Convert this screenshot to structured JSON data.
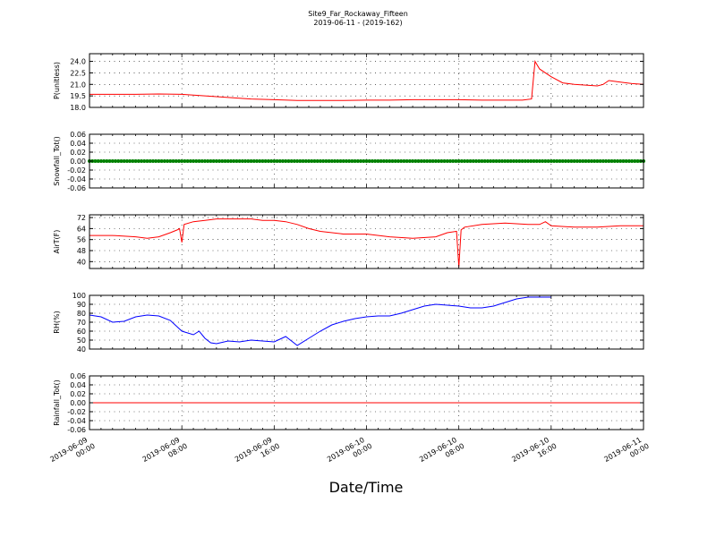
{
  "figure": {
    "title": "Site9_Far_Rockaway_Fifteen",
    "subtitle": "2019-06-11 - (2019-162)",
    "xlabel": "Date/Time"
  },
  "colors": {
    "red": "#ff0000",
    "green": "#008000",
    "blue": "#0000ff",
    "axis": "#000000"
  },
  "x_ticks": [
    {
      "time": 0,
      "line1": "2019-06-09",
      "line2": "00:00"
    },
    {
      "time": 8,
      "line1": "2019-06-09",
      "line2": "08:00"
    },
    {
      "time": 16,
      "line1": "2019-06-09",
      "line2": "16:00"
    },
    {
      "time": 24,
      "line1": "2019-06-10",
      "line2": "00:00"
    },
    {
      "time": 32,
      "line1": "2019-06-10",
      "line2": "08:00"
    },
    {
      "time": 40,
      "line1": "2019-06-10",
      "line2": "16:00"
    },
    {
      "time": 48,
      "line1": "2019-06-11",
      "line2": "00:00"
    }
  ],
  "chart_data": [
    {
      "type": "line",
      "ylabel": "P(unitless)",
      "ylim": [
        18.0,
        25.0
      ],
      "yticks": [
        "18.0",
        "19.5",
        "21.0",
        "22.5",
        "24.0"
      ],
      "ytick_values": [
        18.0,
        19.5,
        21.0,
        22.5,
        24.0
      ],
      "grid": true,
      "color": "#ff0000",
      "x_hours": [
        0,
        2,
        4,
        6,
        8,
        10,
        12,
        14,
        16,
        18,
        20,
        22,
        24,
        26,
        28,
        30,
        32,
        34,
        36,
        37.5,
        38.3,
        38.6,
        39,
        40,
        41,
        42,
        43,
        44,
        44.5,
        45,
        46,
        47,
        48
      ],
      "y": [
        19.7,
        19.7,
        19.7,
        19.75,
        19.7,
        19.5,
        19.3,
        19.1,
        19.0,
        18.9,
        18.9,
        18.9,
        18.95,
        18.95,
        19.0,
        19.0,
        19.0,
        18.95,
        18.95,
        18.95,
        19.1,
        24.0,
        23.0,
        22.0,
        21.2,
        21.0,
        20.9,
        20.8,
        21.0,
        21.5,
        21.3,
        21.1,
        21.0
      ]
    },
    {
      "type": "line",
      "ylabel": "Snowfall_Tot()",
      "ylim": [
        -0.06,
        0.06
      ],
      "yticks": [
        "-0.06",
        "-0.04",
        "-0.02",
        "0.00",
        "0.02",
        "0.04",
        "0.06"
      ],
      "ytick_values": [
        -0.06,
        -0.04,
        -0.02,
        0.0,
        0.02,
        0.04,
        0.06
      ],
      "grid": true,
      "color": "#008000",
      "markers": true,
      "x_hours": [
        0,
        48
      ],
      "y": [
        0.0,
        0.0
      ]
    },
    {
      "type": "line",
      "ylabel": "AirT(F)",
      "ylim": [
        35,
        74
      ],
      "yticks": [
        "40",
        "48",
        "56",
        "64",
        "72"
      ],
      "ytick_values": [
        40,
        48,
        56,
        64,
        72
      ],
      "grid": true,
      "color": "#ff0000",
      "x_hours": [
        0,
        2,
        4,
        5,
        6,
        7,
        7.6,
        7.8,
        8,
        8.2,
        9,
        10,
        11,
        12,
        13,
        14,
        15,
        16,
        17,
        18,
        19,
        20,
        22,
        24,
        26,
        28,
        30,
        31,
        31.8,
        32.0,
        32.2,
        32.5,
        34,
        36,
        38,
        39,
        39.5,
        40,
        42,
        44,
        46,
        48
      ],
      "y": [
        59,
        59,
        58,
        57,
        58,
        61,
        63,
        64,
        54,
        67,
        69,
        70,
        71,
        71,
        71,
        71,
        70,
        70,
        69,
        67,
        64,
        62,
        60,
        60,
        58,
        57,
        58,
        61,
        62,
        36,
        63,
        65,
        67,
        68,
        67,
        67,
        69,
        66,
        65,
        65,
        66,
        66
      ]
    },
    {
      "type": "line",
      "ylabel": "RH(%)",
      "ylim": [
        40,
        100
      ],
      "yticks": [
        "40",
        "50",
        "60",
        "70",
        "80",
        "90",
        "100"
      ],
      "ytick_values": [
        40,
        50,
        60,
        70,
        80,
        90,
        100
      ],
      "grid": true,
      "color": "#0000ff",
      "x_hours": [
        0,
        1,
        2,
        3,
        4,
        5,
        6,
        7,
        8,
        9,
        9.5,
        10,
        10.5,
        11,
        12,
        13,
        14,
        15,
        16,
        17,
        17.5,
        18,
        19,
        20,
        21,
        22,
        23,
        24,
        25,
        26,
        27,
        28,
        29,
        30,
        31,
        32,
        33,
        34,
        35,
        36,
        37,
        38,
        39,
        40
      ],
      "y": [
        78,
        76,
        70,
        71,
        76,
        78,
        77,
        72,
        60,
        56,
        60,
        52,
        47,
        46,
        49,
        48,
        50,
        49,
        48,
        54,
        49,
        44,
        52,
        60,
        67,
        71,
        74,
        76,
        77,
        77,
        80,
        84,
        88,
        90,
        89,
        88,
        86,
        86,
        88,
        92,
        96,
        98,
        98,
        98
      ]
    },
    {
      "type": "line",
      "ylabel": "Rainfall_Tot()",
      "ylim": [
        -0.06,
        0.06
      ],
      "yticks": [
        "-0.06",
        "-0.04",
        "-0.02",
        "0.00",
        "0.02",
        "0.04",
        "0.06"
      ],
      "ytick_values": [
        -0.06,
        -0.04,
        -0.02,
        0.0,
        0.02,
        0.04,
        0.06
      ],
      "grid": true,
      "color": "#ff0000",
      "x_hours": [
        0,
        48
      ],
      "y": [
        0.0,
        0.0
      ]
    }
  ]
}
